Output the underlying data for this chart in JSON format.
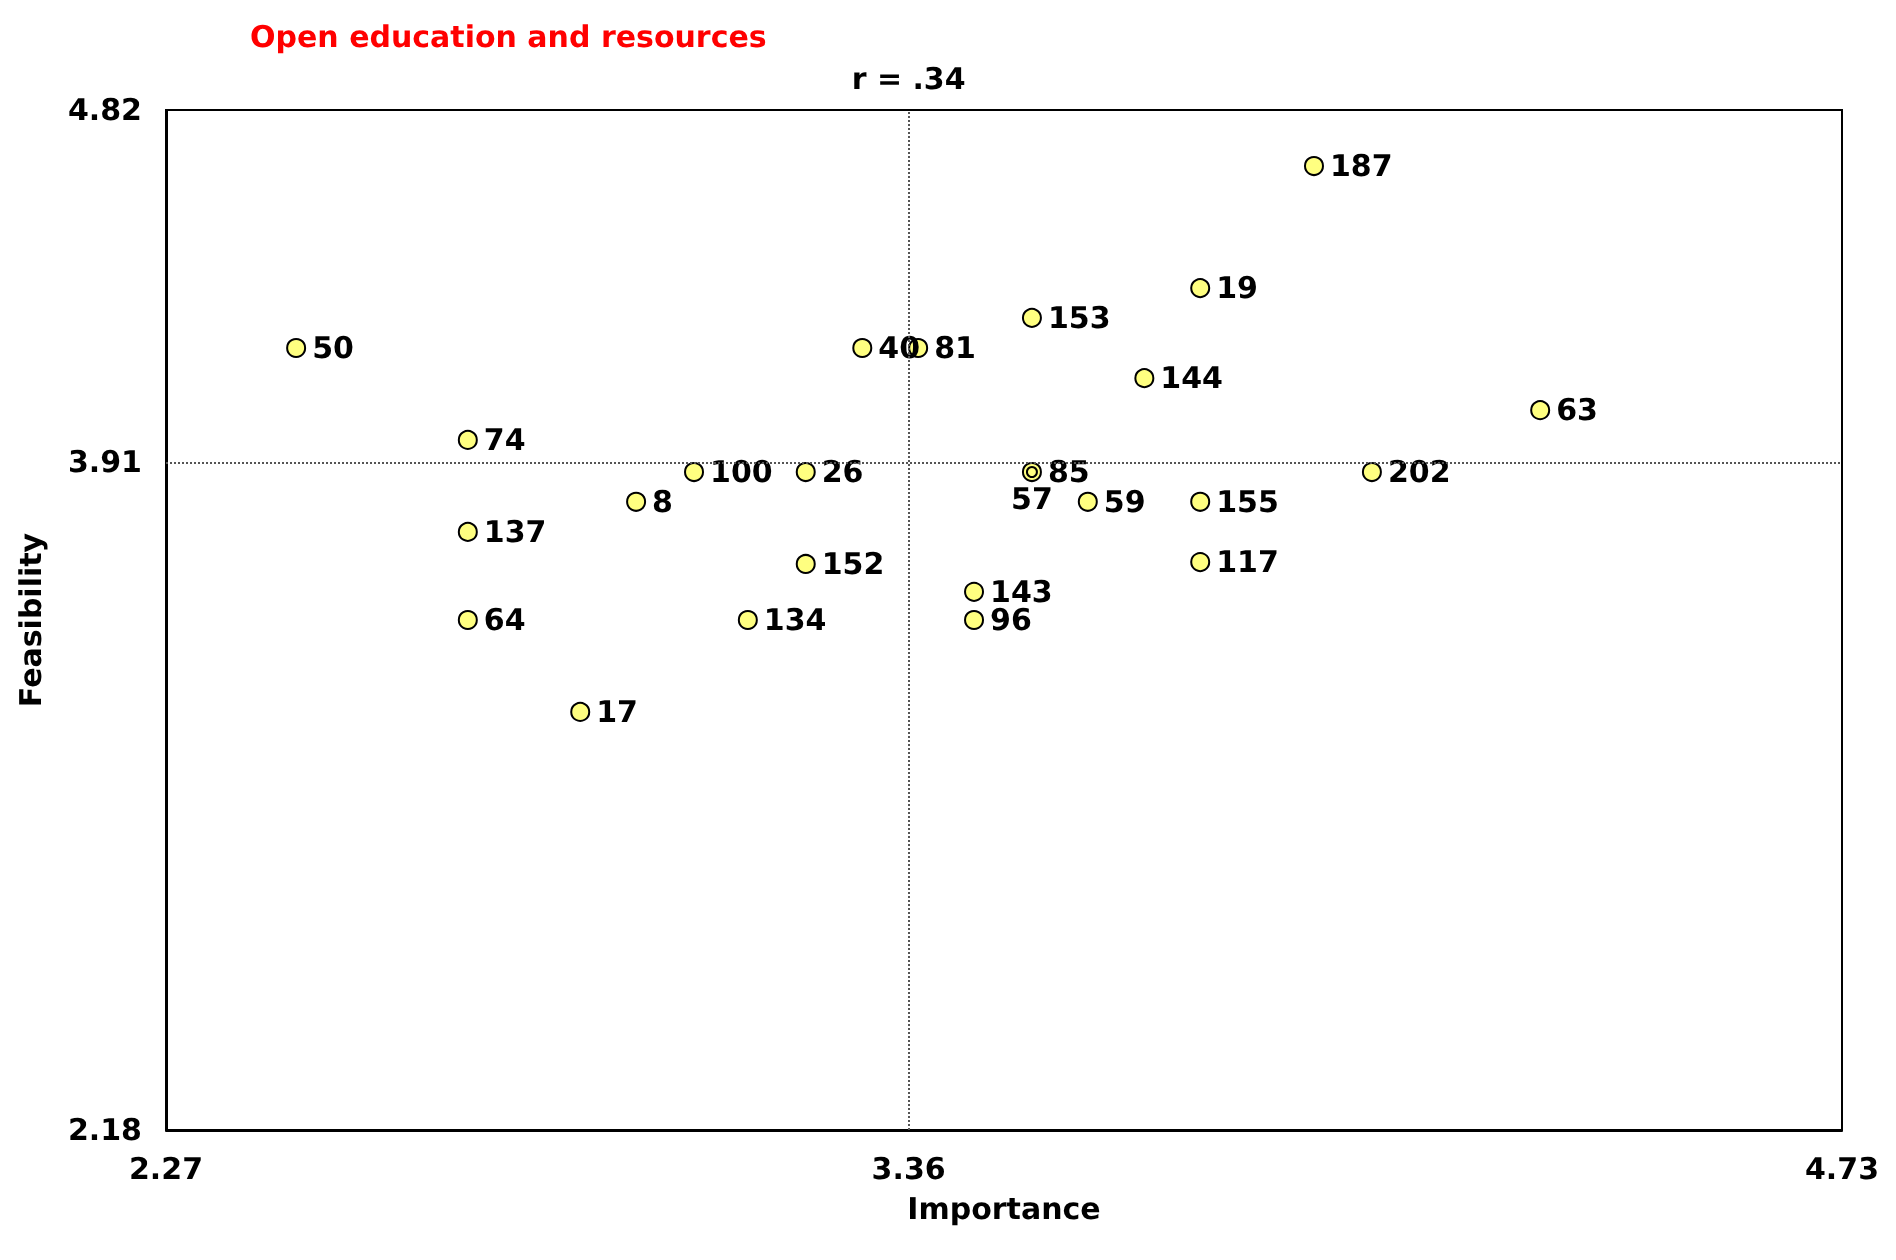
{
  "chart_data": {
    "type": "scatter",
    "title": "Open education and resources",
    "xlabel": "Importance",
    "ylabel": "Feasibility",
    "series": [
      {
        "name": "50",
        "color": "#ffff80",
        "x": [
          2.461
        ],
        "values": [
          4.204
        ]
      },
      {
        "name": "74",
        "color": "#ffff80",
        "x": [
          2.713
        ],
        "values": [
          3.966
        ]
      },
      {
        "name": "137",
        "color": "#ffff80",
        "x": [
          2.713
        ],
        "values": [
          3.728
        ]
      },
      {
        "name": "64",
        "color": "#ffff80",
        "x": [
          2.713
        ],
        "values": [
          3.5
        ]
      },
      {
        "name": "17",
        "color": "#ffff80",
        "x": [
          2.878
        ],
        "values": [
          3.262
        ]
      },
      {
        "name": "8",
        "color": "#ffff80",
        "x": [
          2.96
        ],
        "values": [
          3.806
        ]
      },
      {
        "name": "100",
        "color": "#ffff80",
        "x": [
          3.045
        ],
        "values": [
          3.883
        ]
      },
      {
        "name": "26",
        "color": "#ffff80",
        "x": [
          3.209
        ],
        "values": [
          3.883
        ]
      },
      {
        "name": "152",
        "color": "#ffff80",
        "x": [
          3.209
        ],
        "values": [
          3.645
        ]
      },
      {
        "name": "134",
        "color": "#ffff80",
        "x": [
          3.124
        ],
        "values": [
          3.5
        ]
      },
      {
        "name": "40",
        "color": "#ffff80",
        "x": [
          3.292
        ],
        "values": [
          4.204
        ]
      },
      {
        "name": "81",
        "color": "#ffff80",
        "x": [
          3.374
        ],
        "values": [
          4.204
        ]
      },
      {
        "name": "143",
        "color": "#ffff80",
        "x": [
          3.456
        ],
        "values": [
          3.573
        ]
      },
      {
        "name": "96",
        "color": "#ffff80",
        "x": [
          3.456
        ],
        "values": [
          3.5
        ]
      },
      {
        "name": "85",
        "color": "#ffff80",
        "x": [
          3.541
        ],
        "values": [
          3.883
        ]
      },
      {
        "name": "57",
        "color": "#ffff80",
        "x": [
          3.541
        ],
        "values": [
          3.883
        ]
      },
      {
        "name": "59",
        "color": "#ffff80",
        "x": [
          3.623
        ],
        "values": [
          3.806
        ]
      },
      {
        "name": "153",
        "color": "#ffff80",
        "x": [
          3.541
        ],
        "values": [
          4.282
        ]
      },
      {
        "name": "144",
        "color": "#ffff80",
        "x": [
          3.706
        ],
        "values": [
          4.126
        ]
      },
      {
        "name": "19",
        "color": "#ffff80",
        "x": [
          3.788
        ],
        "values": [
          4.359
        ]
      },
      {
        "name": "155",
        "color": "#ffff80",
        "x": [
          3.788
        ],
        "values": [
          3.806
        ]
      },
      {
        "name": "117",
        "color": "#ffff80",
        "x": [
          3.788
        ],
        "values": [
          3.65
        ]
      },
      {
        "name": "187",
        "color": "#ffff80",
        "x": [
          3.955
        ],
        "values": [
          4.675
        ]
      },
      {
        "name": "202",
        "color": "#ffff80",
        "x": [
          4.04
        ],
        "values": [
          3.883
        ]
      },
      {
        "name": "63",
        "color": "#ffff80",
        "x": [
          4.287
        ],
        "values": [
          4.043
        ]
      }
    ],
    "xlim": [
      2.27,
      4.73
    ],
    "ylim": [
      2.18,
      4.82
    ],
    "xticks": [
      2.27,
      3.36,
      4.73
    ],
    "yticks": [
      2.18,
      3.91,
      4.82
    ],
    "ref_lines": [
      {
        "axis": "x",
        "value": 3.36,
        "label": "r = .34",
        "line_style": "dotted"
      },
      {
        "axis": "y",
        "value": 3.91,
        "line_style": "dotted"
      }
    ],
    "marker": "circle",
    "grid": false,
    "legend": false
  }
}
